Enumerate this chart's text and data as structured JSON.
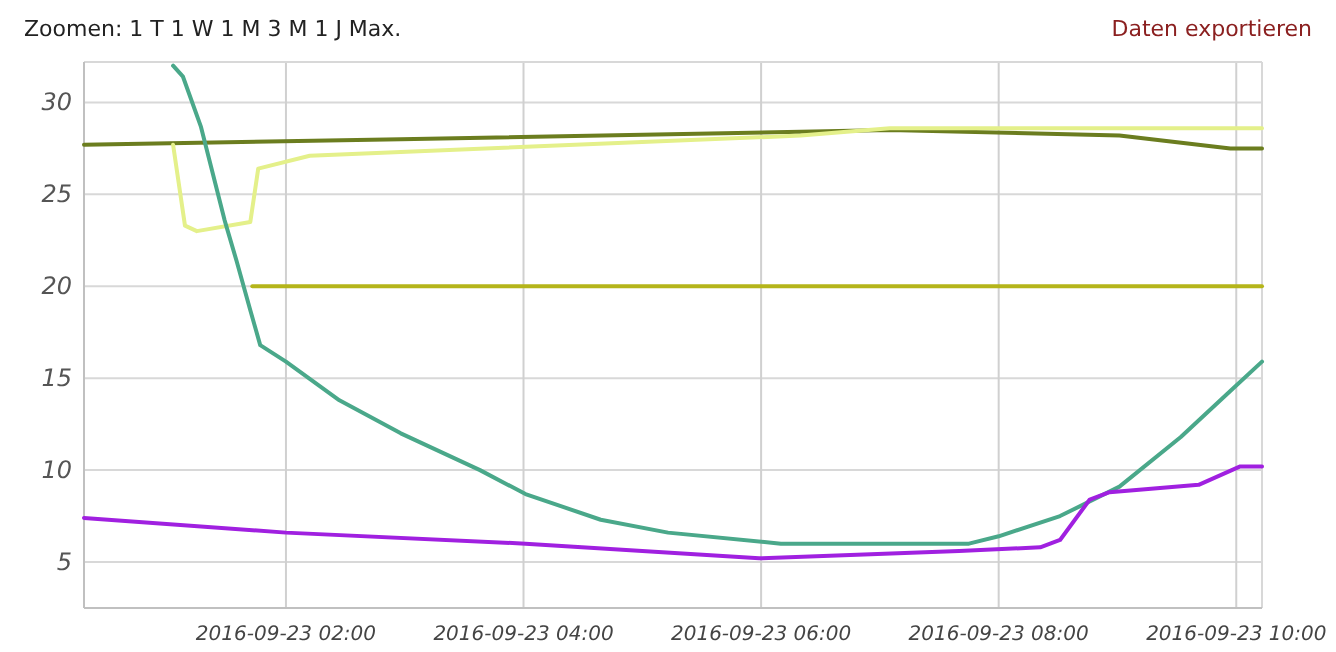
{
  "chart_data": {
    "type": "line",
    "annotations": [
      "Zoomen: 1 T 1 W 1 M 3 M 1 J Max.",
      "Daten exportieren"
    ],
    "xlim": [
      "2016-09-23T00:18",
      "2016-09-23T10:13"
    ],
    "xticks": [
      {
        "value": "2016-09-23T02:00",
        "label": "2016-09-23 02:00"
      },
      {
        "value": "2016-09-23T04:00",
        "label": "2016-09-23 04:00"
      },
      {
        "value": "2016-09-23T06:00",
        "label": "2016-09-23 06:00"
      },
      {
        "value": "2016-09-23T08:00",
        "label": "2016-09-23 08:00"
      },
      {
        "value": "2016-09-23T10:00",
        "label": "2016-09-23 10:00"
      }
    ],
    "ylim": [
      2.5,
      32.2
    ],
    "yticks": [
      5,
      10,
      15,
      20,
      25,
      30
    ],
    "grid": true,
    "marker": "none",
    "line_style": "solid",
    "series": [
      {
        "color": "#6b7d1f",
        "x": [
          "2016-09-23T00:18",
          "2016-09-23T02:58",
          "2016-09-23T07:05",
          "2016-09-23T09:01",
          "2016-09-23T09:57",
          "2016-09-23T10:13"
        ],
        "values": [
          27.7,
          28.0,
          28.5,
          28.2,
          27.5,
          27.5
        ]
      },
      {
        "color": "#e4f08a",
        "x": [
          "2016-09-23T01:03",
          "2016-09-23T01:09",
          "2016-09-23T01:15",
          "2016-09-23T01:42",
          "2016-09-23T01:46",
          "2016-09-23T02:12",
          "2016-09-23T06:20",
          "2016-09-23T07:05",
          "2016-09-23T10:13"
        ],
        "values": [
          27.7,
          23.3,
          23.0,
          23.5,
          26.4,
          27.1,
          28.2,
          28.6,
          28.6
        ]
      },
      {
        "color": "#b5b51a",
        "x": [
          "2016-09-23T01:43",
          "2016-09-23T10:13"
        ],
        "values": [
          20.0,
          20.0
        ]
      },
      {
        "color": "#4aa88a",
        "x": [
          "2016-09-23T01:03",
          "2016-09-23T01:08",
          "2016-09-23T01:17",
          "2016-09-23T01:29",
          "2016-09-23T01:35",
          "2016-09-23T01:42",
          "2016-09-23T01:47",
          "2016-09-23T02:00",
          "2016-09-23T02:27",
          "2016-09-23T02:58",
          "2016-09-23T03:38",
          "2016-09-23T04:01",
          "2016-09-23T04:39",
          "2016-09-23T05:13",
          "2016-09-23T06:10",
          "2016-09-23T07:45",
          "2016-09-23T08:00",
          "2016-09-23T08:31",
          "2016-09-23T09:01",
          "2016-09-23T09:32",
          "2016-09-23T09:57",
          "2016-09-23T10:13"
        ],
        "values": [
          32.0,
          31.4,
          28.7,
          23.6,
          21.4,
          18.7,
          16.8,
          15.9,
          13.8,
          12.0,
          10.0,
          8.7,
          7.3,
          6.6,
          6.0,
          6.0,
          6.4,
          7.5,
          9.1,
          11.8,
          14.3,
          15.9
        ]
      },
      {
        "color": "#a020e0",
        "x": [
          "2016-09-23T00:18",
          "2016-09-23T02:00",
          "2016-09-23T04:01",
          "2016-09-23T05:59",
          "2016-09-23T07:40",
          "2016-09-23T08:21",
          "2016-09-23T08:31",
          "2016-09-23T08:46",
          "2016-09-23T08:56",
          "2016-09-23T09:41",
          "2016-09-23T10:02",
          "2016-09-23T10:13"
        ],
        "values": [
          7.4,
          6.6,
          6.0,
          5.2,
          5.6,
          5.8,
          6.2,
          8.4,
          8.8,
          9.2,
          10.2,
          10.2
        ]
      }
    ]
  }
}
